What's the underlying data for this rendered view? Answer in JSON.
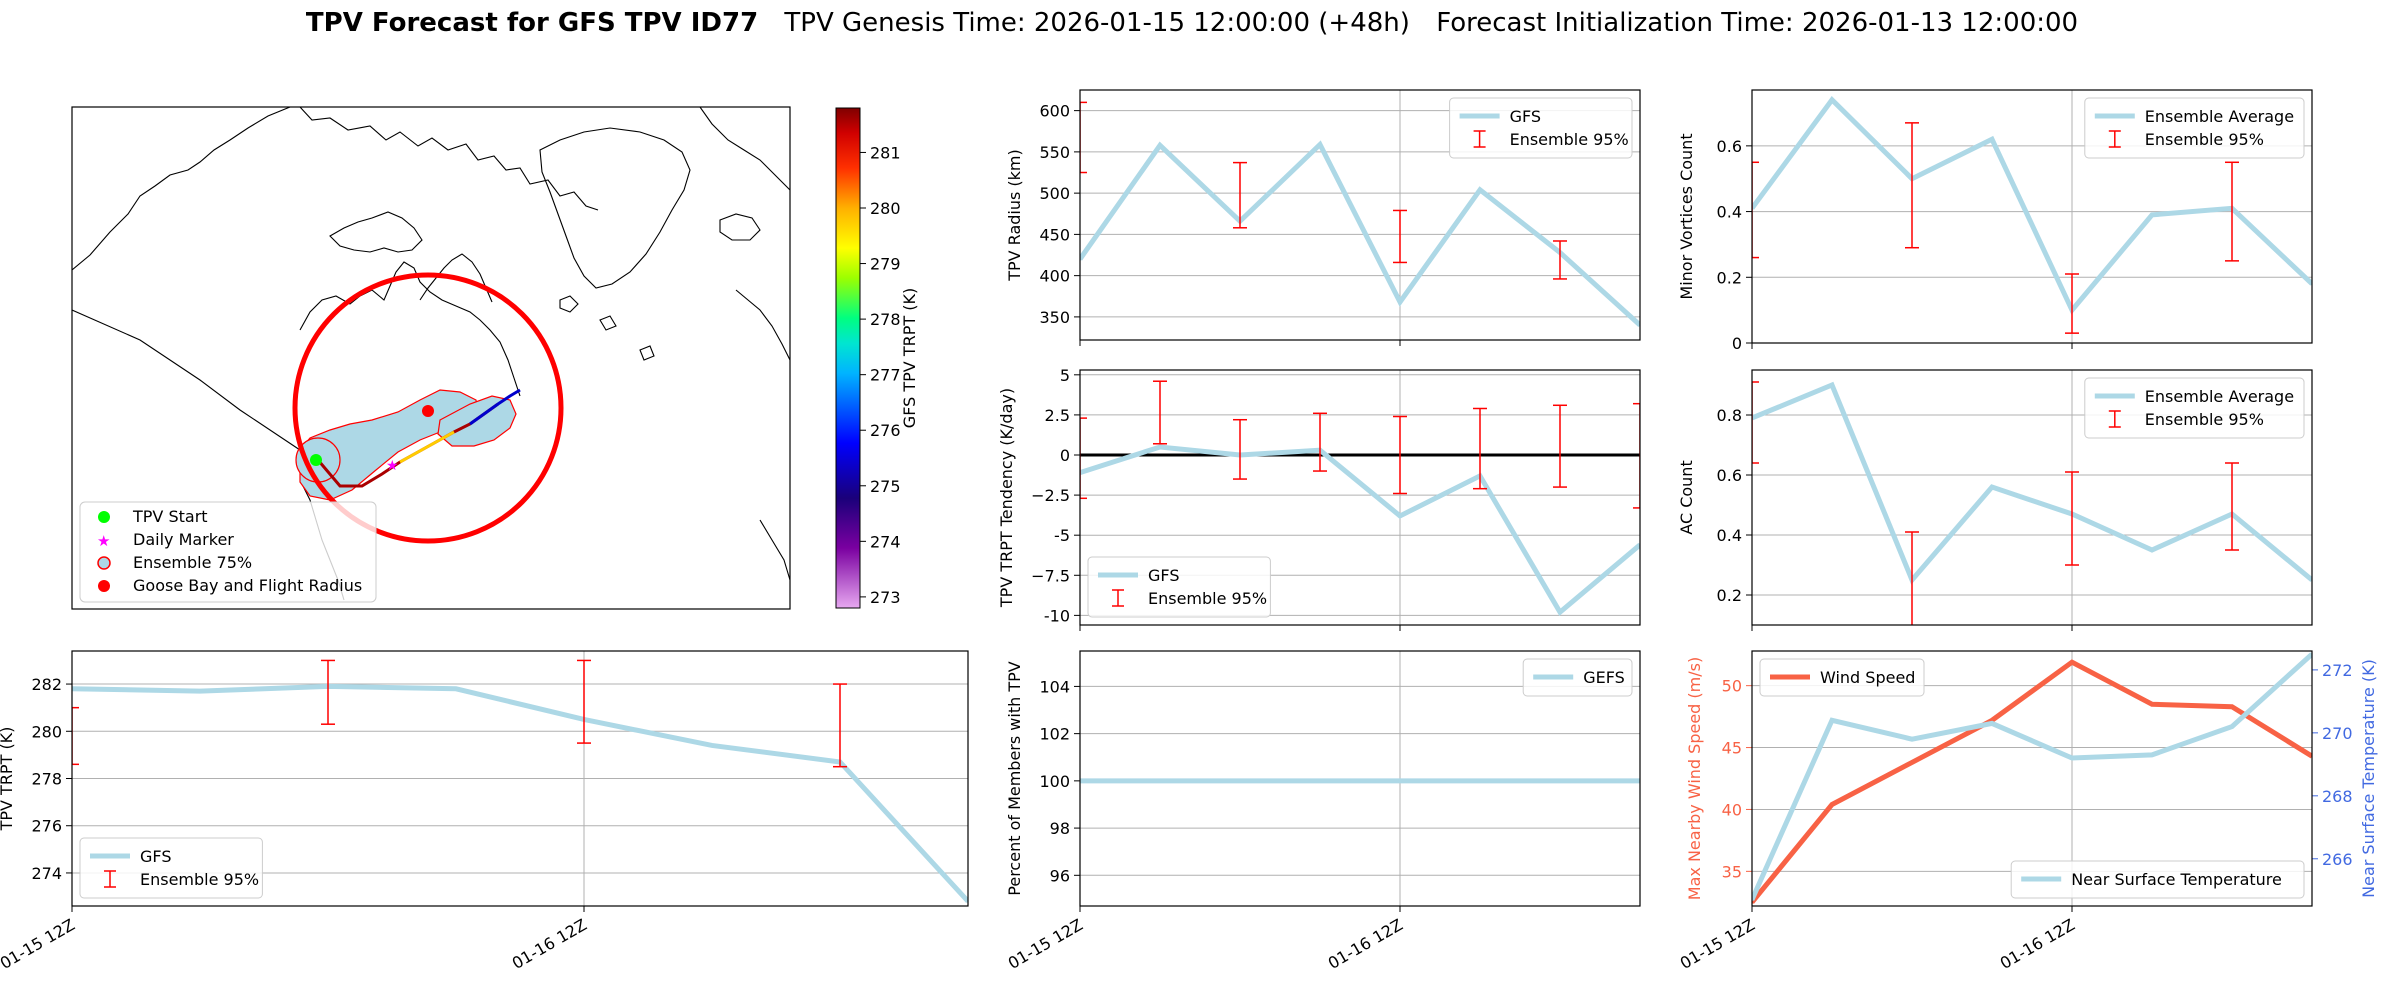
{
  "figure": {
    "title_bold": "TPV Forecast for GFS TPV ID77",
    "title_genesis": "TPV Genesis Time: 2026-01-15 12:00:00 (+48h)",
    "title_init": "Forecast Initialization Time: 2026-01-13 12:00:00"
  },
  "colors": {
    "gfs_line": "#add8e6",
    "errorbar": "#ff0000",
    "wind": "#f86245",
    "temp_axis": "#4169e1",
    "grid": "#b0b0b0",
    "zero_line": "#000000"
  },
  "map": {
    "colorbar_label": "GFS TPV TRPT (K)",
    "colorbar_ticks": [
      "273",
      "274",
      "275",
      "276",
      "277",
      "278",
      "279",
      "280",
      "281"
    ],
    "colorbar_range": [
      272.8,
      281.8
    ],
    "legend": [
      {
        "label": "TPV Start",
        "icon": "green-dot-icon",
        "color": "#00ff00"
      },
      {
        "label": "Daily Marker",
        "icon": "magenta-star-icon",
        "color": "#ff00ff"
      },
      {
        "label": "Ensemble 75%",
        "icon": "ensemble-patch-icon",
        "color": "#add8e6"
      },
      {
        "label": "Goose Bay and Flight Radius",
        "icon": "red-dot-icon",
        "color": "#ff0000"
      }
    ]
  },
  "chart_data": [
    {
      "id": "radius",
      "type": "line",
      "ylabel": "TPV Radius (km)",
      "xlabel": "",
      "ylim": [
        322,
        625
      ],
      "yticks": [
        350,
        400,
        450,
        500,
        550,
        600
      ],
      "legend_pos": "upper right",
      "series": [
        {
          "name": "GFS",
          "x": [
            0,
            1,
            2,
            3,
            4,
            5,
            6,
            7
          ],
          "values": [
            420,
            558,
            466,
            559,
            368,
            504,
            428,
            340
          ]
        }
      ],
      "errorbars": {
        "name": "Ensemble 95%",
        "x": [
          0,
          2,
          4,
          6
        ],
        "low": [
          525,
          458,
          416,
          396
        ],
        "high": [
          610,
          537,
          479,
          442
        ]
      }
    },
    {
      "id": "minor",
      "type": "line",
      "ylabel": "Minor Vortices Count",
      "xlabel": "",
      "ylim": [
        0,
        0.77
      ],
      "yticks": [
        0.0,
        0.2,
        0.4,
        0.6
      ],
      "legend_pos": "upper right",
      "series": [
        {
          "name": "Ensemble Average",
          "x": [
            0,
            1,
            2,
            3,
            4,
            5,
            6,
            7
          ],
          "values": [
            0.41,
            0.74,
            0.5,
            0.62,
            0.1,
            0.39,
            0.41,
            0.18
          ]
        }
      ],
      "errorbars": {
        "name": "Ensemble 95%",
        "x": [
          0,
          2,
          4,
          6
        ],
        "low": [
          0.26,
          0.29,
          0.03,
          0.25
        ],
        "high": [
          0.55,
          0.67,
          0.21,
          0.55
        ]
      }
    },
    {
      "id": "tendency",
      "type": "line",
      "ylabel": "TPV TRPT Tendency (K/day)",
      "xlabel": "",
      "ylim": [
        -10.6,
        5.3
      ],
      "yticks": [
        -10.0,
        -7.5,
        -5.0,
        -2.5,
        0.0,
        2.5,
        5.0
      ],
      "legend_pos": "lower left",
      "zero_line": true,
      "series": [
        {
          "name": "GFS",
          "x": [
            0,
            1,
            2,
            3,
            4,
            5,
            6,
            7
          ],
          "values": [
            -1.1,
            0.5,
            0.0,
            0.3,
            -3.8,
            -1.3,
            -9.8,
            -5.6
          ]
        }
      ],
      "errorbars": {
        "name": "Ensemble 95%",
        "x": [
          0,
          1,
          2,
          3,
          4,
          5,
          6,
          7
        ],
        "low": [
          -2.7,
          0.7,
          -1.5,
          -1.0,
          -2.4,
          -2.1,
          -2.0,
          -3.3
        ],
        "high": [
          2.3,
          4.6,
          2.2,
          2.6,
          2.4,
          2.9,
          3.1,
          3.2
        ]
      }
    },
    {
      "id": "ac",
      "type": "line",
      "ylabel": "AC Count",
      "xlabel": "",
      "ylim": [
        0.1,
        0.95
      ],
      "yticks": [
        0.2,
        0.4,
        0.6,
        0.8
      ],
      "legend_pos": "upper right",
      "series": [
        {
          "name": "Ensemble Average",
          "x": [
            0,
            1,
            2,
            3,
            4,
            5,
            6,
            7
          ],
          "values": [
            0.79,
            0.9,
            0.25,
            0.56,
            0.47,
            0.35,
            0.47,
            0.25
          ]
        }
      ],
      "errorbars": {
        "name": "Ensemble 95%",
        "x": [
          0,
          2,
          4,
          6
        ],
        "low": [
          0.64,
          0.09,
          0.3,
          0.35
        ],
        "high": [
          0.91,
          0.41,
          0.61,
          0.64
        ]
      }
    },
    {
      "id": "trpt",
      "type": "line",
      "ylabel": "TPV TRPT (K)",
      "xlabel": "",
      "ylim": [
        272.6,
        283.4
      ],
      "yticks": [
        274,
        276,
        278,
        280,
        282
      ],
      "xticks": [
        "01-15 12Z",
        "01-16 12Z"
      ],
      "legend_pos": "lower left",
      "series": [
        {
          "name": "GFS",
          "x": [
            0,
            1,
            2,
            3,
            4,
            5,
            6,
            7
          ],
          "values": [
            281.8,
            281.7,
            281.9,
            281.8,
            280.5,
            279.4,
            278.7,
            272.8
          ]
        }
      ],
      "errorbars": {
        "name": "Ensemble 95%",
        "x": [
          0,
          2,
          4,
          6
        ],
        "low": [
          278.6,
          280.3,
          279.5,
          278.5
        ],
        "high": [
          281.0,
          283.0,
          283.0,
          282.0
        ]
      }
    },
    {
      "id": "members",
      "type": "line",
      "ylabel": "Percent of Members with TPV",
      "xlabel": "",
      "ylim": [
        94.7,
        105.5
      ],
      "yticks": [
        96,
        98,
        100,
        102,
        104
      ],
      "xticks": [
        "01-15 12Z",
        "01-16 12Z"
      ],
      "legend_pos": "upper right",
      "series": [
        {
          "name": "GEFS",
          "x": [
            0,
            1,
            2,
            3,
            4,
            5,
            6,
            7
          ],
          "values": [
            100,
            100,
            100,
            100,
            100,
            100,
            100,
            100
          ]
        }
      ]
    },
    {
      "id": "wind",
      "type": "line",
      "ylabel": "Max Nearby Wind Speed (m/s)",
      "ylabel_right": "Near Surface Temperature (K)",
      "xlabel": "",
      "ylim": [
        32.2,
        52.8
      ],
      "yticks": [
        35,
        40,
        45,
        50
      ],
      "ylim_right": [
        264.5,
        272.6
      ],
      "yticks_right": [
        266,
        268,
        270,
        272
      ],
      "xticks": [
        "01-15 12Z",
        "01-16 12Z"
      ],
      "series": [
        {
          "name": "Wind Speed",
          "axis": "left",
          "x": [
            0,
            1,
            2,
            3,
            4,
            5,
            6,
            7
          ],
          "values": [
            32.5,
            40.4,
            43.8,
            47.2,
            51.9,
            48.5,
            48.3,
            44.3
          ]
        },
        {
          "name": "Near Surface Temperature",
          "axis": "right",
          "x": [
            0,
            1,
            2,
            3,
            4,
            5,
            6,
            7
          ],
          "values": [
            264.7,
            270.4,
            269.8,
            270.3,
            269.2,
            269.3,
            270.2,
            272.5
          ]
        }
      ]
    }
  ]
}
